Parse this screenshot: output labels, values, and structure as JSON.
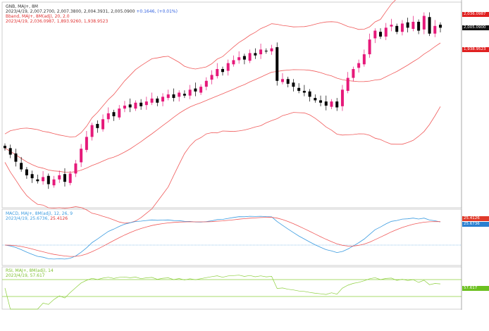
{
  "window_title": "GNB, MAJ+",
  "main_legend": {
    "symbol": "GNB, MAJ+, 8M",
    "ohlc": "2023/4/19, 2,007.2700, 2,007.3800, 2,004.3931, 2,005.0900",
    "change": "+0.1646, (+0.01%)",
    "bb_title": "Bband, MAJ+, 8M(adj), 20, 2.0",
    "bb_values": "2023/4/19, 2,036.0987, 1,893.9260, 1,938.9523"
  },
  "macd_legend": {
    "title": "MACD, MAJ+, 8M(adj), 12, 26, 9",
    "date": "2023/4/19,",
    "macd": "25.6736,",
    "signal": "25.4126"
  },
  "rsi_legend": {
    "title": "RSI, MAJ+, 8M(adj), 14",
    "values": "2023/4/19, 57.617"
  },
  "price_tags": {
    "upper": "2,036.0987",
    "last": "2,005.0900",
    "lower": "1,938.9523"
  },
  "macd_tags": {
    "signal": "25.4126",
    "macd": "25.6736"
  },
  "rsi_tag": "57.617",
  "colors": {
    "up": "#e6197a",
    "down": "#000000",
    "band": "#f05a5a",
    "macd": "#3a9be0",
    "signal": "#f05a5a",
    "rsi": "#8ccf3c",
    "rsi_levels": "#8ccf3c"
  },
  "chart_data": [
    {
      "type": "candlestick",
      "ylim": [
        1700,
        2040
      ],
      "close": [
        1801,
        1790,
        1778,
        1765,
        1755,
        1750,
        1745,
        1752,
        1740,
        1748,
        1755,
        1744,
        1758,
        1775,
        1800,
        1820,
        1840,
        1835,
        1850,
        1860,
        1855,
        1868,
        1873,
        1870,
        1878,
        1872,
        1880,
        1885,
        1878,
        1888,
        1892,
        1886,
        1895,
        1890,
        1900,
        1897,
        1905,
        1915,
        1925,
        1935,
        1930,
        1945,
        1950,
        1955,
        1951,
        1962,
        1958,
        1968,
        1965,
        1970,
        1915,
        1918,
        1910,
        1905,
        1898,
        1895,
        1888,
        1882,
        1878,
        1873,
        1880,
        1870,
        1900,
        1920,
        1935,
        1945,
        1960,
        1985,
        2000,
        1990,
        2005,
        2010,
        1998,
        2012,
        2005,
        2015,
        2000,
        2025,
        1995,
        2008,
        2005
      ],
      "overlay": "bollinger(20,2)"
    },
    {
      "type": "line",
      "name": "MACD",
      "params": [
        12,
        26,
        9
      ]
    },
    {
      "type": "line",
      "name": "RSI",
      "params": [
        14
      ],
      "levels": [
        70,
        30
      ]
    }
  ]
}
